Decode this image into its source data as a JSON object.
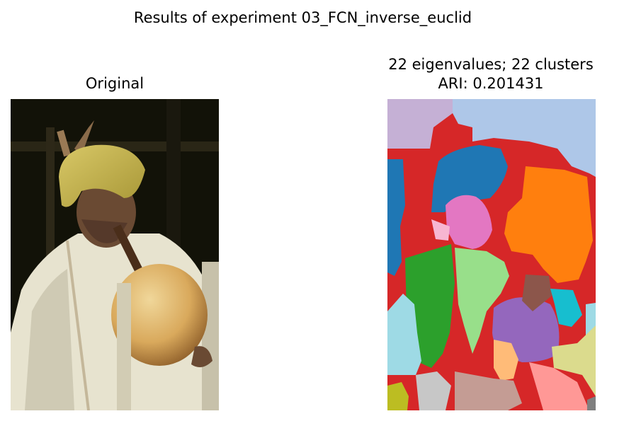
{
  "figure": {
    "suptitle": "Results of experiment 03_FCN_inverse_euclid"
  },
  "chart_data": [
    {
      "type": "image",
      "title": "Original",
      "content": "photograph of a man wearing a yellow turban holding a gourd string instrument",
      "axes": "off"
    },
    {
      "type": "heatmap",
      "title": "22 eigenvalues; 22 clusters\nARI: 0.201431",
      "title_lines": [
        "22 eigenvalues; 22 clusters",
        "ARI: 0.201431"
      ],
      "eigenvalues": 22,
      "clusters": 22,
      "ari": 0.201431,
      "colormap": "tab20",
      "axes": "off",
      "palette": [
        "#d62728",
        "#c5b0d5",
        "#aec7e8",
        "#1f77b4",
        "#ff7f0e",
        "#e377c2",
        "#f7b6d2",
        "#2ca02c",
        "#98df8a",
        "#8c564b",
        "#9467bd",
        "#17becf",
        "#9edae5",
        "#ffbb78",
        "#dbdb8d",
        "#c49c94",
        "#ff9896",
        "#c7c7c7",
        "#bcbd22",
        "#7f7f7f"
      ]
    }
  ]
}
